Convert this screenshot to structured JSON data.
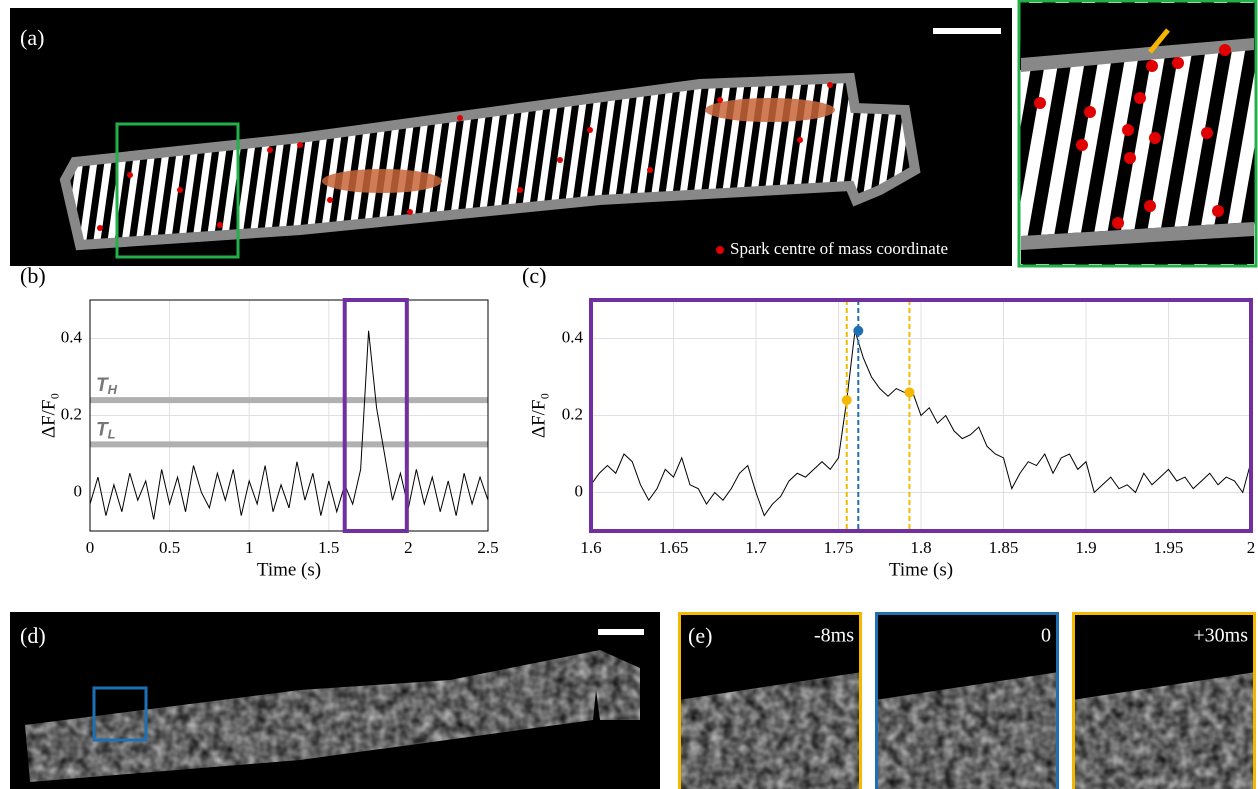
{
  "panels": {
    "a": {
      "label": "(a)",
      "legend": "Spark centre of mass coordinate"
    },
    "d": {
      "label": "(d)"
    },
    "e": {
      "label": "(e)",
      "frames": [
        "-8ms",
        "0",
        "+30ms"
      ]
    }
  },
  "chart_data": [
    {
      "type": "line",
      "panel_label": "(b)",
      "xlabel": "Time (s)",
      "ylabel": "ΔF/F₀",
      "xlim": [
        0,
        2.5
      ],
      "ylim": [
        -0.1,
        0.5
      ],
      "xticks": [
        0,
        0.5,
        1,
        1.5,
        2,
        2.5
      ],
      "yticks": [
        0,
        0.2,
        0.4
      ],
      "grid": true,
      "x": [
        0,
        0.05,
        0.1,
        0.15,
        0.2,
        0.25,
        0.3,
        0.35,
        0.4,
        0.45,
        0.5,
        0.55,
        0.6,
        0.65,
        0.7,
        0.75,
        0.8,
        0.85,
        0.9,
        0.95,
        1,
        1.05,
        1.1,
        1.15,
        1.2,
        1.25,
        1.3,
        1.35,
        1.4,
        1.45,
        1.5,
        1.55,
        1.6,
        1.65,
        1.7,
        1.75,
        1.8,
        1.85,
        1.9,
        1.95,
        2,
        2.05,
        2.1,
        2.15,
        2.2,
        2.25,
        2.3,
        2.35,
        2.4,
        2.45,
        2.5
      ],
      "series": [
        {
          "color": "#000000",
          "values": [
            -0.03,
            0.04,
            -0.06,
            0.02,
            -0.05,
            0.05,
            -0.02,
            0.03,
            -0.07,
            0.06,
            -0.03,
            0.04,
            -0.05,
            0.07,
            0,
            -0.04,
            0.05,
            -0.02,
            0.06,
            -0.06,
            0.03,
            -0.03,
            0.07,
            -0.05,
            0.02,
            -0.04,
            0.08,
            -0.02,
            0.05,
            -0.06,
            0.03,
            -0.05,
            0.02,
            -0.03,
            0.06,
            0.42,
            0.22,
            0.1,
            -0.02,
            0.05,
            -0.04,
            0.06,
            -0.03,
            0.04,
            -0.05,
            0.03,
            -0.06,
            0.05,
            -0.03,
            0.04,
            -0.02
          ]
        }
      ],
      "thresholds": [
        {
          "value": 0.24,
          "label": "T",
          "sub": "H",
          "color": "#b0b0b0"
        },
        {
          "value": 0.125,
          "label": "T",
          "sub": "L",
          "color": "#b0b0b0"
        }
      ],
      "highlight": {
        "xlim": [
          1.6,
          1.99
        ],
        "color": "#7030a0"
      }
    },
    {
      "type": "line",
      "panel_label": "(c)",
      "xlabel": "Time (s)",
      "ylabel": "ΔF/F₀",
      "xlim": [
        1.6,
        2
      ],
      "ylim": [
        -0.1,
        0.5
      ],
      "xticks": [
        1.6,
        1.65,
        1.7,
        1.75,
        1.8,
        1.85,
        1.9,
        1.95,
        2
      ],
      "yticks": [
        0,
        0.2,
        0.4
      ],
      "grid": true,
      "frame_color": "#7030a0",
      "x": [
        1.6,
        1.605,
        1.61,
        1.615,
        1.62,
        1.625,
        1.63,
        1.635,
        1.64,
        1.645,
        1.65,
        1.655,
        1.66,
        1.665,
        1.67,
        1.675,
        1.68,
        1.685,
        1.69,
        1.695,
        1.7,
        1.705,
        1.71,
        1.715,
        1.72,
        1.725,
        1.73,
        1.735,
        1.74,
        1.745,
        1.75,
        1.755,
        1.76,
        1.765,
        1.77,
        1.775,
        1.78,
        1.785,
        1.79,
        1.795,
        1.8,
        1.805,
        1.81,
        1.815,
        1.82,
        1.825,
        1.83,
        1.835,
        1.84,
        1.845,
        1.85,
        1.855,
        1.86,
        1.865,
        1.87,
        1.875,
        1.88,
        1.885,
        1.89,
        1.895,
        1.9,
        1.905,
        1.91,
        1.915,
        1.92,
        1.925,
        1.93,
        1.935,
        1.94,
        1.945,
        1.95,
        1.955,
        1.96,
        1.965,
        1.97,
        1.975,
        1.98,
        1.985,
        1.99,
        1.995,
        2
      ],
      "series": [
        {
          "color": "#000000",
          "values": [
            0.02,
            0.05,
            0.07,
            0.05,
            0.1,
            0.08,
            0.02,
            -0.02,
            0.01,
            0.06,
            0.04,
            0.09,
            0.02,
            0.01,
            -0.03,
            0,
            -0.02,
            0.01,
            0.05,
            0.07,
            0,
            -0.06,
            -0.03,
            -0.01,
            0.03,
            0.05,
            0.04,
            0.06,
            0.08,
            0.06,
            0.09,
            0.24,
            0.42,
            0.35,
            0.3,
            0.27,
            0.25,
            0.27,
            0.26,
            0.26,
            0.2,
            0.22,
            0.18,
            0.2,
            0.16,
            0.14,
            0.15,
            0.17,
            0.12,
            0.1,
            0.09,
            0.01,
            0.05,
            0.08,
            0.07,
            0.1,
            0.05,
            0.09,
            0.1,
            0.06,
            0.08,
            0,
            0.02,
            0.04,
            0.01,
            0.02,
            0,
            0.05,
            0.02,
            0.04,
            0.06,
            0.03,
            0.04,
            0.01,
            0.03,
            0.05,
            0.02,
            0.04,
            0.03,
            0,
            0.08
          ]
        }
      ],
      "markers": [
        {
          "x": 1.755,
          "y": 0.24,
          "color": "#f5b800"
        },
        {
          "x": 1.762,
          "y": 0.42,
          "color": "#1f6fb5"
        },
        {
          "x": 1.793,
          "y": 0.26,
          "color": "#f5b800"
        }
      ]
    }
  ]
}
